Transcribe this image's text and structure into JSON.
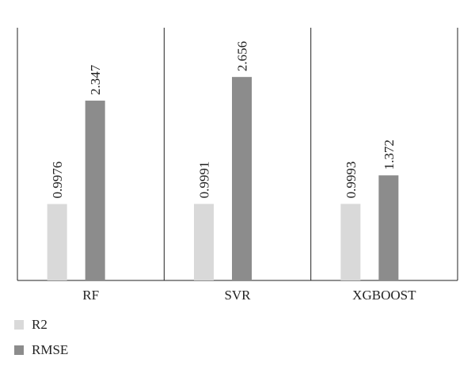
{
  "chart_data": {
    "type": "bar",
    "categories": [
      "RF",
      "SVR",
      "XGBOOST"
    ],
    "series": [
      {
        "name": "R2",
        "values": [
          0.9976,
          0.9991,
          0.9993
        ],
        "labels": [
          "0.9976",
          "0.9991",
          "0.9993"
        ],
        "color": "#d9d9d9"
      },
      {
        "name": "RMSE",
        "values": [
          2.347,
          2.656,
          1.372
        ],
        "labels": [
          "2.347",
          "2.656",
          "1.372"
        ],
        "color": "#8c8c8c"
      }
    ],
    "ylim": [
      0,
      3
    ],
    "grid": false,
    "legend_position": "bottom-left"
  }
}
